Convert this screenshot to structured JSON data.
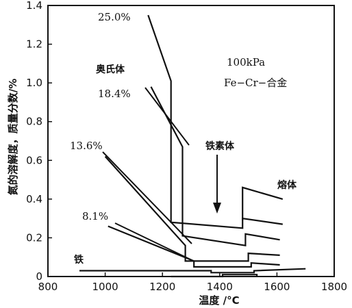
{
  "chart_data": {
    "type": "line",
    "title": "",
    "xlabel": "温度 /°C",
    "ylabel": "氮的溶解度，质量分数/%",
    "xlim": [
      800,
      1800
    ],
    "ylim": [
      0,
      1.4
    ],
    "xticks": [
      "800",
      "1000",
      "1200",
      "1400",
      "1600",
      "1800"
    ],
    "yticks": [
      "0",
      "0.2",
      "0.4",
      "0.6",
      "0.8",
      "1.0",
      "1.2",
      "1.4"
    ],
    "series": [
      {
        "name": "25.0%",
        "points": [
          [
            1150,
            1.35
          ],
          [
            1230,
            1.01
          ],
          [
            1230,
            0.28
          ],
          [
            1480,
            0.25
          ],
          [
            1480,
            0.3
          ],
          [
            1620,
            0.27
          ]
        ]
      },
      {
        "name": "18.4%",
        "points": [
          [
            1160,
            0.98
          ],
          [
            1270,
            0.67
          ],
          [
            1270,
            0.21
          ],
          [
            1490,
            0.16
          ],
          [
            1490,
            0.22
          ],
          [
            1610,
            0.19
          ]
        ]
      },
      {
        "name": "13.6%",
        "points": [
          [
            1000,
            0.62
          ],
          [
            1280,
            0.16
          ],
          [
            1280,
            0.08
          ],
          [
            1500,
            0.08
          ],
          [
            1500,
            0.12
          ],
          [
            1610,
            0.11
          ]
        ]
      },
      {
        "name": "8.1%",
        "points": [
          [
            1010,
            0.26
          ],
          [
            1310,
            0.08
          ],
          [
            1310,
            0.05
          ],
          [
            1510,
            0.05
          ],
          [
            1510,
            0.07
          ],
          [
            1610,
            0.06
          ]
        ]
      },
      {
        "name": "铁",
        "points": [
          [
            910,
            0.03
          ],
          [
            1370,
            0.03
          ],
          [
            1370,
            0.02
          ],
          [
            1520,
            0.02
          ],
          [
            1520,
            0.03
          ],
          [
            1700,
            0.04
          ]
        ]
      },
      {
        "name": "",
        "points": [
          [
            1230,
            0.0
          ],
          [
            1410,
            0.0
          ],
          [
            1410,
            0.01
          ],
          [
            1530,
            0.01
          ],
          [
            1530,
            0.0
          ]
        ]
      },
      {
        "name": "",
        "points": [
          [
            1480,
            0.29
          ],
          [
            1480,
            0.46
          ],
          [
            1620,
            0.4
          ]
        ]
      }
    ],
    "annotations": {
      "austenite": "奥氏体",
      "ferrite": "铁素体",
      "melt": "熔体",
      "pressure": "100kPa",
      "alloy": "Fe−Cr−合金"
    }
  }
}
